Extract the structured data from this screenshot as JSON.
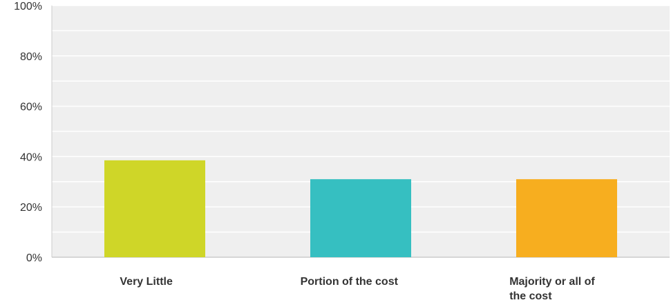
{
  "chart_data": {
    "type": "bar",
    "categories": [
      "Very Little",
      "Portion of the cost",
      "Majority or all of the cost"
    ],
    "category_lines": [
      [
        "Very Little"
      ],
      [
        "Portion of the cost"
      ],
      [
        "Majority or all of",
        "the cost"
      ]
    ],
    "values": [
      38.5,
      31,
      31
    ],
    "colors": [
      "#cfd628",
      "#36bfc1",
      "#f7ae1f"
    ],
    "ylim": [
      0,
      100
    ],
    "yticks": [
      0,
      20,
      40,
      60,
      80,
      100
    ],
    "ytick_labels": [
      "0%",
      "20%",
      "40%",
      "60%",
      "80%",
      "100%"
    ],
    "grid": true,
    "legend": "none"
  }
}
